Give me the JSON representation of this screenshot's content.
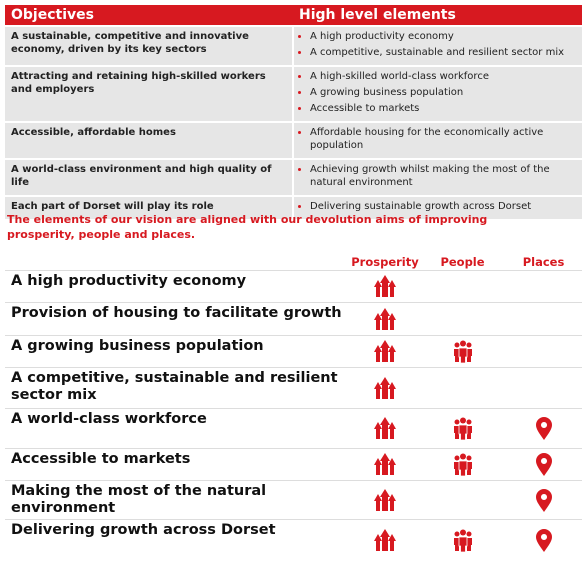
{
  "objectives_table": {
    "headers": [
      "Objectives",
      "High level elements"
    ],
    "rows": [
      {
        "objective": "A sustainable, competitive and innovative economy, driven by its key sectors",
        "elements": [
          "A high productivity economy",
          "A competitive, sustainable and resilient sector mix"
        ]
      },
      {
        "objective": "Attracting and retaining high-skilled workers and employers",
        "elements": [
          "A high-skilled world-class workforce",
          "A growing business population",
          "Accessible to markets"
        ]
      },
      {
        "objective": "Accessible, affordable homes",
        "elements": [
          "Affordable housing for the economically active population"
        ]
      },
      {
        "objective": "A world-class environment and high quality of life",
        "elements": [
          "Achieving growth whilst making the most of the natural environment"
        ]
      },
      {
        "objective": "Each part of Dorset will play its role",
        "elements": [
          "Delivering sustainable growth across Dorset"
        ]
      }
    ]
  },
  "paragraph": "The elements of our vision are aligned with our devolution aims of improving prosperity, people and places.",
  "alignment_table": {
    "headers": [
      "Prosperity",
      "People",
      "Places"
    ],
    "rows": [
      {
        "label": "A high productivity economy",
        "marks": [
          true,
          false,
          false
        ]
      },
      {
        "label": "Provision of housing to facilitate growth",
        "marks": [
          true,
          false,
          false
        ]
      },
      {
        "label": "A growing business population",
        "marks": [
          true,
          true,
          false
        ]
      },
      {
        "label": "A competitive, sustainable and resilient sector mix",
        "marks": [
          true,
          false,
          false
        ]
      },
      {
        "label": "A world-class workforce",
        "marks": [
          true,
          true,
          true
        ]
      },
      {
        "label": "Accessible to markets",
        "marks": [
          true,
          true,
          true
        ]
      },
      {
        "label": "Making the most of the natural environment",
        "marks": [
          true,
          false,
          true
        ]
      },
      {
        "label": "Delivering growth across Dorset",
        "marks": [
          true,
          true,
          true
        ]
      }
    ]
  }
}
